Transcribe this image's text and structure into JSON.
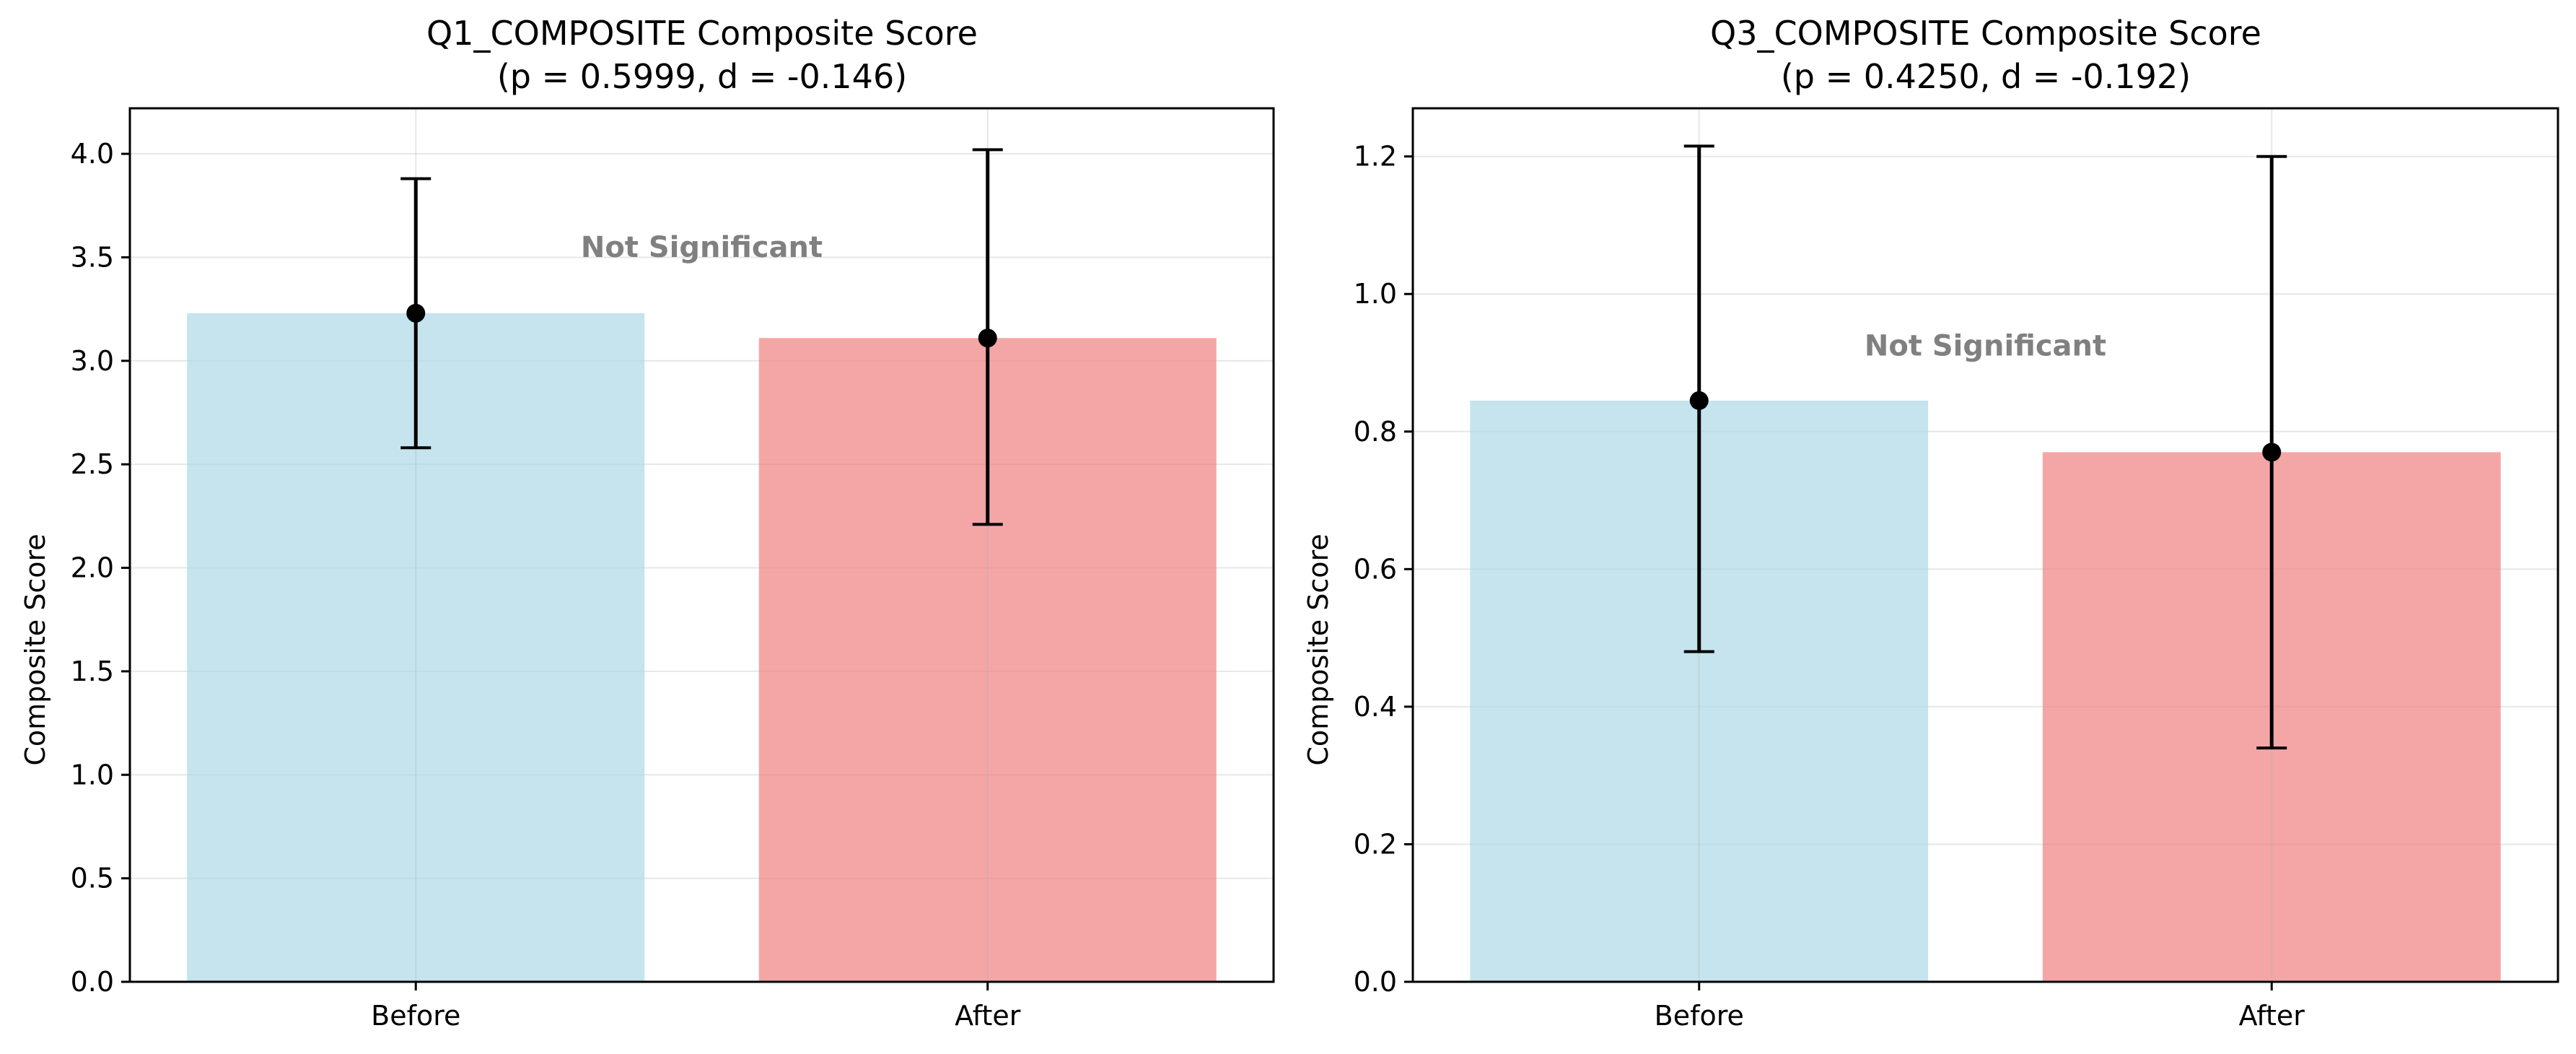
{
  "chart_data": [
    {
      "type": "bar",
      "title": "Q1_COMPOSITE Composite Score",
      "subtitle": "(p = 0.5999, d = -0.146)",
      "xlabel": "",
      "ylabel": "Composite Score",
      "categories": [
        "Before",
        "After"
      ],
      "values": [
        3.23,
        3.11
      ],
      "error_low": [
        2.58,
        2.21
      ],
      "error_high": [
        3.88,
        4.02
      ],
      "ylim": [
        0,
        4.22
      ],
      "yticks": [
        0.0,
        0.5,
        1.0,
        1.5,
        2.0,
        2.5,
        3.0,
        3.5,
        4.0
      ],
      "ytick_labels": [
        "0.0",
        "0.5",
        "1.0",
        "1.5",
        "2.0",
        "2.5",
        "3.0",
        "3.5",
        "4.0"
      ],
      "grid": true,
      "annotation": {
        "text": "Not Significant",
        "y": 3.55
      },
      "colors": [
        "#add8e6",
        "#f08080"
      ]
    },
    {
      "type": "bar",
      "title": "Q3_COMPOSITE Composite Score",
      "subtitle": "(p = 0.4250, d = -0.192)",
      "xlabel": "",
      "ylabel": "Composite Score",
      "categories": [
        "Before",
        "After"
      ],
      "values": [
        0.845,
        0.77
      ],
      "error_low": [
        0.48,
        0.34
      ],
      "error_high": [
        1.215,
        1.2
      ],
      "ylim": [
        0,
        1.27
      ],
      "yticks": [
        0.0,
        0.2,
        0.4,
        0.6,
        0.8,
        1.0,
        1.2
      ],
      "ytick_labels": [
        "0.0",
        "0.2",
        "0.4",
        "0.6",
        "0.8",
        "1.0",
        "1.2"
      ],
      "grid": true,
      "annotation": {
        "text": "Not Significant",
        "y": 0.925
      },
      "colors": [
        "#add8e6",
        "#f08080"
      ]
    }
  ]
}
